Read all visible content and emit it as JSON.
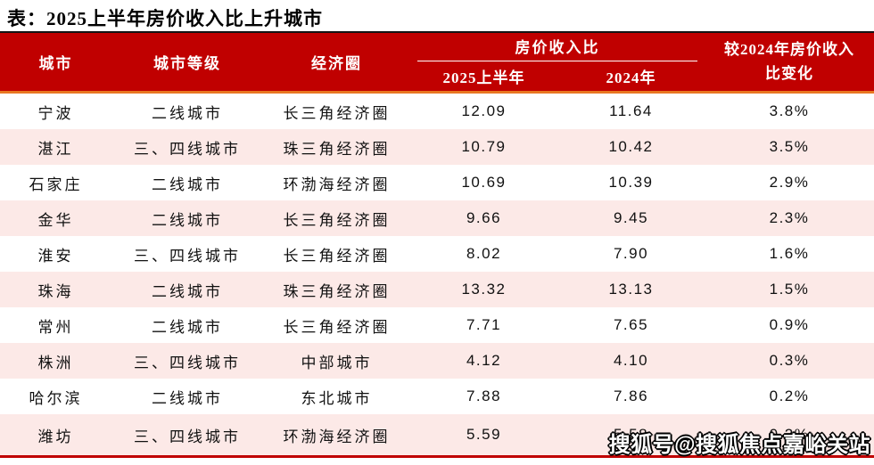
{
  "page": {
    "title": "表：2025上半年房价收入比上升城市",
    "watermark": "搜狐号@搜狐焦点嘉峪关站"
  },
  "colors": {
    "header_bg": "#C00000",
    "header_text": "#FFFFFF",
    "accent_line_orange": "#E87722",
    "row_alt_bg": "#FCE9E7",
    "table_bottom_line": "#C00000",
    "table_top_line": "#141414"
  },
  "table": {
    "headers": {
      "city": "城市",
      "tier": "城市等级",
      "region": "经济圈",
      "ratio_group": "房价收入比",
      "h1_2025": "2025上半年",
      "y2024": "2024年",
      "change_line1": "较2024年房价收入",
      "change_line2": "比变化"
    },
    "rows": [
      {
        "city": "宁波",
        "tier": "二线城市",
        "region": "长三角经济圈",
        "ratio_2025h1": "12.09",
        "ratio_2024": "11.64",
        "change": "3.8%"
      },
      {
        "city": "湛江",
        "tier": "三、四线城市",
        "region": "珠三角经济圈",
        "ratio_2025h1": "10.79",
        "ratio_2024": "10.42",
        "change": "3.5%"
      },
      {
        "city": "石家庄",
        "tier": "二线城市",
        "region": "环渤海经济圈",
        "ratio_2025h1": "10.69",
        "ratio_2024": "10.39",
        "change": "2.9%"
      },
      {
        "city": "金华",
        "tier": "二线城市",
        "region": "长三角经济圈",
        "ratio_2025h1": "9.66",
        "ratio_2024": "9.45",
        "change": "2.3%"
      },
      {
        "city": "淮安",
        "tier": "三、四线城市",
        "region": "长三角经济圈",
        "ratio_2025h1": "8.02",
        "ratio_2024": "7.90",
        "change": "1.6%"
      },
      {
        "city": "珠海",
        "tier": "二线城市",
        "region": "珠三角经济圈",
        "ratio_2025h1": "13.32",
        "ratio_2024": "13.13",
        "change": "1.5%"
      },
      {
        "city": "常州",
        "tier": "二线城市",
        "region": "长三角经济圈",
        "ratio_2025h1": "7.71",
        "ratio_2024": "7.65",
        "change": "0.9%"
      },
      {
        "city": "株洲",
        "tier": "三、四线城市",
        "region": "中部城市",
        "ratio_2025h1": "4.12",
        "ratio_2024": "4.10",
        "change": "0.3%"
      },
      {
        "city": "哈尔滨",
        "tier": "二线城市",
        "region": "东北城市",
        "ratio_2025h1": "7.88",
        "ratio_2024": "7.86",
        "change": "0.2%"
      },
      {
        "city": "潍坊",
        "tier": "三、四线城市",
        "region": "环渤海经济圈",
        "ratio_2025h1": "5.59",
        "ratio_2024": "5.58",
        "change": "0.2%"
      }
    ]
  }
}
